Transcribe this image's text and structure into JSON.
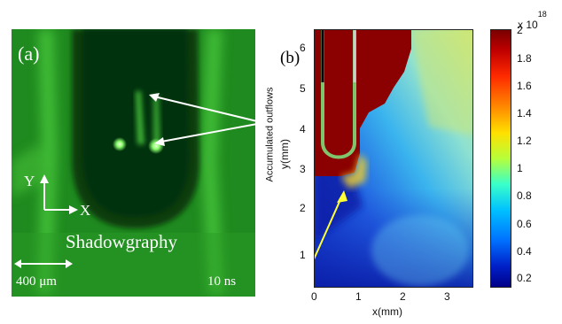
{
  "panel_a": {
    "label": "(a)",
    "title_text": "Shadowgraphy",
    "axis_y": "Y",
    "axis_x": "X",
    "scale_bar": "400 μm",
    "time": "10 ns",
    "annotation": "Accumulated outflows",
    "colors": {
      "background": "#1f8a1f",
      "cavity": "#0a3a0a",
      "bright": "#8cff6e"
    }
  },
  "panel_b": {
    "label": "(b)",
    "xlabel": "x(mm)",
    "ylabel": "y(mm)",
    "x_ticks": [
      "0",
      "1",
      "2",
      "3"
    ],
    "y_ticks": [
      "1",
      "2",
      "3",
      "4",
      "5",
      "6"
    ],
    "colorbar_exponent": "x 10",
    "colorbar_exponent_power": "18",
    "colorbar_ticks": [
      "2",
      "1.8",
      "1.6",
      "1.4",
      "1.2",
      "1",
      "0.8",
      "0.6",
      "0.4",
      "0.2"
    ],
    "colors": {
      "high": "#8b0000",
      "arrow": "#ffff33"
    }
  },
  "chart_data": {
    "type": "heatmap",
    "xlabel": "x(mm)",
    "ylabel": "y(mm)",
    "xlim": [
      0,
      3.6
    ],
    "ylim": [
      0,
      6.5
    ],
    "colorbar_range": [
      0.1,
      2.0
    ],
    "colorbar_scale": "x 10^18",
    "colorbar_ticks": [
      2,
      1.8,
      1.6,
      1.4,
      1.2,
      1,
      0.8,
      0.6,
      0.4,
      0.2
    ]
  }
}
